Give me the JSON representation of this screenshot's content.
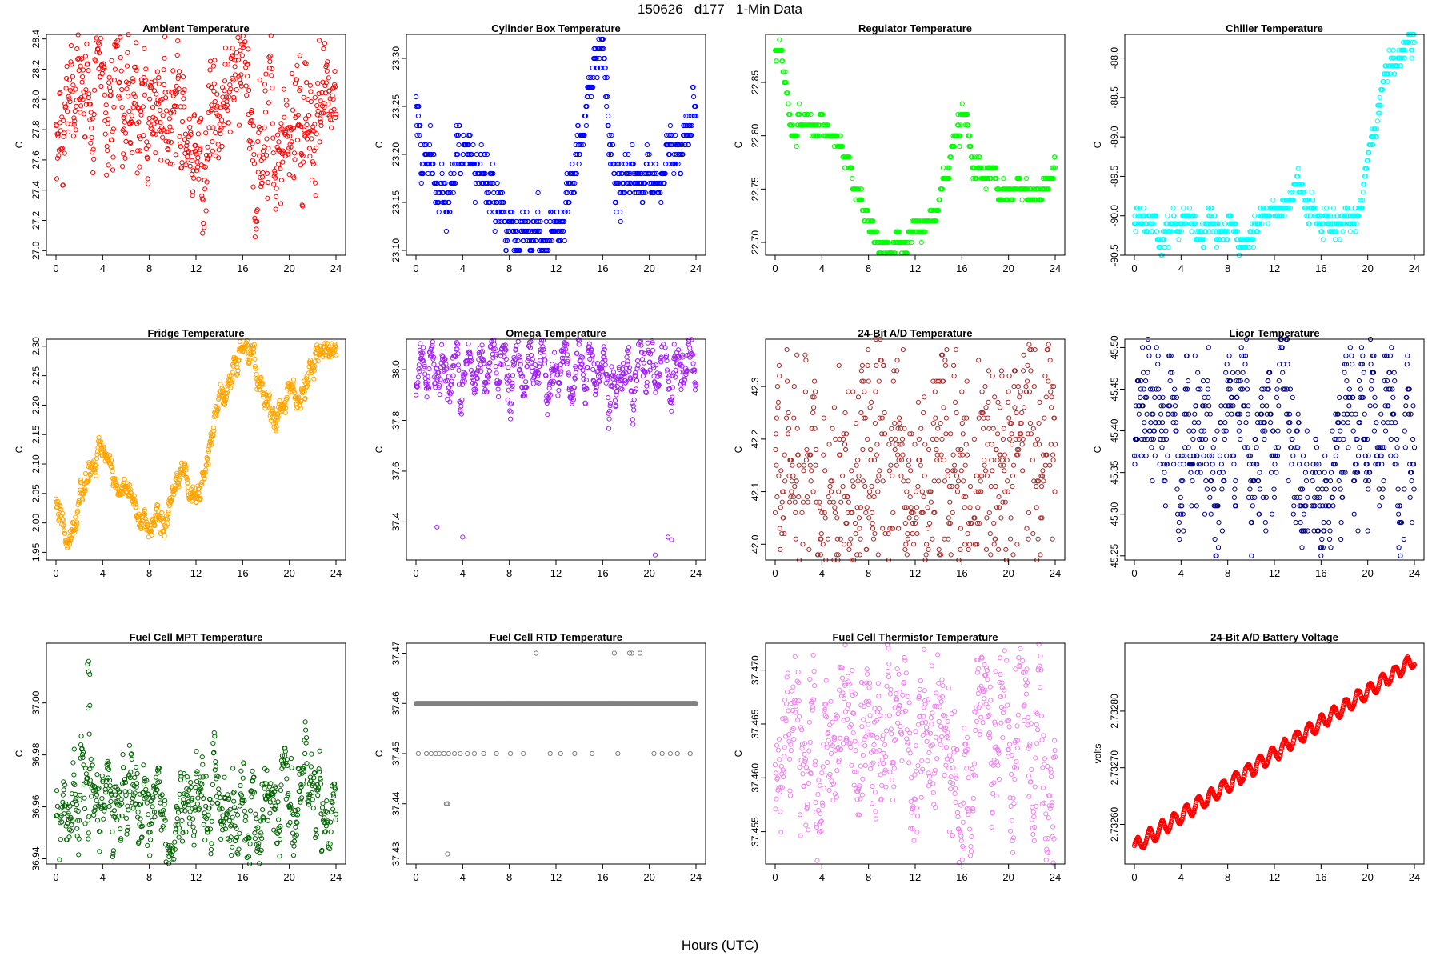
{
  "title": "150626   d177   1-Min Data",
  "x_label": "Hours (UTC)",
  "chart_data": [
    {
      "type": "scatter",
      "title": "Ambient Temperature",
      "xlabel": "",
      "ylabel": "C",
      "color": "#ff0000",
      "xlim": [
        0,
        24
      ],
      "xticks": [
        "0",
        "4",
        "8",
        "12",
        "16",
        "20",
        "24"
      ],
      "ylim": [
        26.97,
        28.43
      ],
      "yticks": [
        "27.0",
        "27.2",
        "27.4",
        "27.6",
        "27.8",
        "28.0",
        "28.2",
        "28.4"
      ],
      "ytick_values": [
        27.0,
        27.2,
        27.4,
        27.6,
        27.8,
        28.0,
        28.2,
        28.4
      ],
      "series": [
        {
          "name": "Ambient Temperature",
          "x": [
            0,
            1,
            2,
            3,
            4,
            5,
            6,
            7,
            8,
            9,
            10,
            11,
            12,
            12.5,
            13,
            14,
            15,
            16,
            16.5,
            17,
            18,
            19,
            20,
            21,
            22,
            23,
            24
          ],
          "y": [
            27.78,
            27.85,
            27.95,
            28.0,
            28.05,
            28.0,
            27.95,
            27.9,
            27.95,
            27.85,
            28.05,
            28.0,
            27.65,
            27.35,
            27.9,
            28.0,
            28.15,
            28.2,
            28.2,
            27.75,
            27.7,
            27.7,
            27.75,
            27.8,
            27.8,
            27.8,
            27.85
          ],
          "spread": 0.13,
          "noise": 0.11
        }
      ]
    },
    {
      "type": "scatter",
      "title": "Cylinder Box Temperature",
      "xlabel": "",
      "ylabel": "C",
      "color": "#0000ff",
      "xlim": [
        0,
        24
      ],
      "xticks": [
        "0",
        "4",
        "8",
        "12",
        "16",
        "20",
        "24"
      ],
      "ylim": [
        23.095,
        23.325
      ],
      "yticks": [
        "23.10",
        "23.15",
        "23.20",
        "23.25",
        "23.30"
      ],
      "ytick_values": [
        23.1,
        23.15,
        23.2,
        23.25,
        23.3
      ],
      "series": [
        {
          "name": "Cylinder Box Temperature",
          "x": [
            0,
            0.5,
            1.5,
            3,
            4,
            5,
            6,
            7,
            8,
            9,
            10,
            11,
            12,
            13,
            14,
            15,
            16,
            16.5,
            17,
            18,
            19,
            20,
            21,
            22,
            23,
            24
          ],
          "y": [
            23.25,
            23.22,
            23.17,
            23.18,
            23.22,
            23.2,
            23.18,
            23.15,
            23.12,
            23.11,
            23.12,
            23.11,
            23.13,
            23.15,
            23.2,
            23.27,
            23.32,
            23.24,
            23.17,
            23.165,
            23.17,
            23.18,
            23.18,
            23.19,
            23.21,
            23.25
          ],
          "spread": 0.01,
          "noise": 0.005,
          "quant": 0.01
        }
      ]
    },
    {
      "type": "scatter",
      "title": "Regulator Temperature",
      "xlabel": "",
      "ylabel": "C",
      "color": "#00ff00",
      "xlim": [
        0,
        24
      ],
      "xticks": [
        "0",
        "4",
        "8",
        "12",
        "16",
        "20",
        "24"
      ],
      "ylim": [
        22.688,
        22.895
      ],
      "yticks": [
        "22.70",
        "22.75",
        "22.80",
        "22.85"
      ],
      "ytick_values": [
        22.7,
        22.75,
        22.8,
        22.85
      ],
      "series": [
        {
          "name": "Regulator Temperature",
          "x": [
            0,
            0.5,
            1,
            1.5,
            2,
            3,
            4,
            5,
            6,
            7,
            8,
            9,
            10,
            11,
            12,
            13,
            14,
            15,
            16,
            16.5,
            17,
            18,
            19,
            20,
            21,
            22,
            23,
            24
          ],
          "y": [
            22.89,
            22.87,
            22.84,
            22.81,
            22.81,
            22.81,
            22.81,
            22.8,
            22.78,
            22.74,
            22.72,
            22.7,
            22.7,
            22.7,
            22.71,
            22.71,
            22.74,
            22.78,
            22.82,
            22.81,
            22.77,
            22.76,
            22.76,
            22.75,
            22.75,
            22.74,
            22.75,
            22.77
          ],
          "spread": 0.004,
          "noise": 0.002,
          "quant": 0.01
        }
      ]
    },
    {
      "type": "scatter",
      "title": "Chiller Temperature",
      "xlabel": "",
      "ylabel": "C",
      "color": "#00ffff",
      "xlim": [
        0,
        24
      ],
      "xticks": [
        "0",
        "4",
        "8",
        "12",
        "16",
        "20",
        "24"
      ],
      "ylim": [
        -90.5,
        -87.7
      ],
      "yticks": [
        "-90.5",
        "-90.0",
        "-89.5",
        "-89.0",
        "-88.5",
        "-88.0"
      ],
      "ytick_values": [
        -90.5,
        -90.0,
        -89.5,
        -89.0,
        -88.5,
        -88.0
      ],
      "series": [
        {
          "name": "Chiller Temperature",
          "x": [
            0,
            1,
            2,
            3,
            4,
            5,
            6,
            7,
            8,
            9,
            10,
            11,
            12,
            13,
            14,
            14.5,
            15,
            16,
            17,
            18,
            19,
            19.5,
            20,
            21,
            22,
            23,
            24
          ],
          "y": [
            -90.0,
            -90.15,
            -90.2,
            -90.2,
            -90.1,
            -90.1,
            -90.2,
            -90.2,
            -90.2,
            -90.4,
            -90.2,
            -89.9,
            -89.9,
            -89.9,
            -89.6,
            -89.7,
            -90.0,
            -90.1,
            -90.0,
            -90.0,
            -90.0,
            -89.8,
            -89.3,
            -88.5,
            -88.1,
            -87.9,
            -87.8
          ],
          "spread": 0.06,
          "noise": 0.03,
          "quant": 0.1
        }
      ]
    },
    {
      "type": "scatter",
      "title": "Fridge Temperature",
      "xlabel": "",
      "ylabel": "C",
      "color": "#ffa500",
      "xlim": [
        0,
        24
      ],
      "xticks": [
        "0",
        "4",
        "8",
        "12",
        "16",
        "20",
        "24"
      ],
      "ylim": [
        1.937,
        2.312
      ],
      "yticks": [
        "1.95",
        "2.00",
        "2.05",
        "2.10",
        "2.15",
        "2.20",
        "2.25",
        "2.30"
      ],
      "ytick_values": [
        1.95,
        2.0,
        2.05,
        2.1,
        2.15,
        2.2,
        2.25,
        2.3
      ],
      "series": [
        {
          "name": "Fridge Temperature",
          "x": [
            0,
            0.5,
            1,
            1.5,
            2,
            3,
            4,
            5,
            6,
            7,
            8,
            9,
            10,
            11,
            12,
            13,
            14,
            15,
            16,
            17,
            18,
            19,
            20,
            21,
            22,
            23,
            24
          ],
          "y": [
            2.03,
            2.0,
            1.95,
            1.98,
            2.03,
            2.1,
            2.12,
            2.07,
            2.06,
            2.0,
            2.0,
            2.0,
            2.05,
            2.1,
            2.04,
            2.1,
            2.22,
            2.25,
            2.29,
            2.28,
            2.2,
            2.19,
            2.23,
            2.21,
            2.26,
            2.3,
            2.29
          ],
          "spread": 0.007,
          "noise": 0.004
        }
      ]
    },
    {
      "type": "scatter",
      "title": "Omega Temperature",
      "xlabel": "",
      "ylabel": "C",
      "color": "#a020f0",
      "xlim": [
        0,
        24
      ],
      "xticks": [
        "0",
        "4",
        "8",
        "12",
        "16",
        "20",
        "24"
      ],
      "ylim": [
        37.25,
        38.12
      ],
      "yticks": [
        "37.4",
        "37.6",
        "37.8",
        "38.0"
      ],
      "ytick_values": [
        37.4,
        37.6,
        37.8,
        38.0
      ],
      "series": [
        {
          "name": "Omega Temperature",
          "x": [
            0,
            0.5,
            1,
            2,
            4,
            6,
            8,
            10,
            12,
            14,
            16,
            18,
            20,
            22,
            24
          ],
          "y": [
            37.88,
            37.98,
            38.0,
            38.0,
            38.0,
            38.0,
            38.0,
            38.0,
            38.0,
            38.0,
            38.0,
            37.99,
            38.0,
            38.0,
            38.0
          ],
          "spread": 0.03,
          "noise": 0.015,
          "wave": 0.07,
          "waveperiod": 1.05
        }
      ],
      "outliers": {
        "x": [
          1.8,
          4.0,
          20.5,
          21.6,
          21.9
        ],
        "y": [
          37.38,
          37.34,
          37.27,
          37.34,
          37.33
        ]
      }
    },
    {
      "type": "scatter",
      "title": "24-Bit A/D Temperature",
      "xlabel": "",
      "ylabel": "C",
      "color": "#a52a2a",
      "xlim": [
        0,
        24
      ],
      "xticks": [
        "0",
        "4",
        "8",
        "12",
        "16",
        "20",
        "24"
      ],
      "ylim": [
        41.97,
        42.39
      ],
      "yticks": [
        "42.0",
        "42.1",
        "42.2",
        "42.3"
      ],
      "ytick_values": [
        42.0,
        42.1,
        42.2,
        42.3
      ],
      "series": [
        {
          "name": "24-Bit A/D Temperature",
          "x": [
            0,
            4,
            8,
            12,
            16,
            20,
            24
          ],
          "y": [
            42.1,
            42.12,
            42.12,
            42.13,
            42.15,
            42.16,
            42.16
          ],
          "spread": 0.09,
          "noise": 0.06,
          "quant": 0.01
        }
      ]
    },
    {
      "type": "scatter",
      "title": "Licor Temperature",
      "xlabel": "",
      "ylabel": "C",
      "color": "#000080",
      "xlim": [
        0,
        24
      ],
      "xticks": [
        "0",
        "4",
        "8",
        "12",
        "16",
        "20",
        "24"
      ],
      "ylim": [
        45.245,
        45.51
      ],
      "yticks": [
        "45.25",
        "45.30",
        "45.35",
        "45.40",
        "45.45",
        "45.50"
      ],
      "ytick_values": [
        45.25,
        45.3,
        45.35,
        45.4,
        45.45,
        45.5
      ],
      "series": [
        {
          "name": "Licor Temperature",
          "x": [
            0,
            1,
            2,
            3,
            4,
            5,
            6,
            7,
            8,
            9,
            10,
            11,
            12,
            13,
            14,
            15,
            16,
            17,
            18,
            19,
            20,
            21,
            22,
            23,
            24
          ],
          "y": [
            45.36,
            45.43,
            45.4,
            45.38,
            45.37,
            45.38,
            45.41,
            45.39,
            45.42,
            45.41,
            45.4,
            45.38,
            45.37,
            45.38,
            45.36,
            45.3,
            45.29,
            45.4,
            45.42,
            45.41,
            45.41,
            45.39,
            45.38,
            45.36,
            45.35
          ],
          "spread": 0.035,
          "noise": 0.02,
          "quant": 0.01
        }
      ]
    },
    {
      "type": "scatter",
      "title": "Fuel Cell MPT Temperature",
      "xlabel": "",
      "ylabel": "C",
      "color": "#006400",
      "xlim": [
        0,
        24
      ],
      "xticks": [
        "0",
        "4",
        "8",
        "12",
        "16",
        "20",
        "24"
      ],
      "ylim": [
        36.938,
        37.023
      ],
      "yticks": [
        "36.94",
        "36.96",
        "36.98",
        "37.00"
      ],
      "ytick_values": [
        36.94,
        36.96,
        36.98,
        37.0
      ],
      "series": [
        {
          "name": "Fuel Cell MPT Temperature",
          "x": [
            0,
            2,
            4,
            5,
            6,
            8,
            10,
            12,
            13,
            14,
            15,
            16,
            17,
            18,
            20,
            21,
            22,
            23,
            24
          ],
          "y": [
            36.957,
            36.96,
            36.958,
            36.965,
            36.96,
            36.96,
            36.957,
            36.96,
            36.965,
            36.962,
            36.955,
            36.958,
            36.962,
            36.958,
            36.958,
            36.964,
            36.958,
            36.956,
            36.952
          ],
          "spread": 0.006,
          "noise": 0.003
        }
      ],
      "outliers": {
        "x": [
          2.7,
          2.8,
          2.8,
          2.9,
          2.75,
          2.85,
          2.9
        ],
        "y": [
          37.015,
          37.012,
          37.016,
          36.999,
          36.998,
          36.988,
          37.011
        ]
      }
    },
    {
      "type": "scatter",
      "title": "Fuel Cell RTD Temperature",
      "xlabel": "",
      "ylabel": "C",
      "color": "#808080",
      "xlim": [
        0,
        24
      ],
      "xticks": [
        "0",
        "4",
        "8",
        "12",
        "16",
        "20",
        "24"
      ],
      "ylim": [
        37.428,
        37.472
      ],
      "yticks": [
        "37.43",
        "37.44",
        "37.45",
        "37.46",
        "37.47"
      ],
      "ytick_values": [
        37.43,
        37.44,
        37.45,
        37.46,
        37.47
      ],
      "series": [
        {
          "name": "Fuel Cell RTD Temperature",
          "x": [
            0,
            24
          ],
          "y": [
            37.46,
            37.46
          ],
          "spread": 0.0,
          "noise": 0.0
        }
      ],
      "outliers": {
        "x": [
          0.2,
          0.9,
          1.3,
          1.7,
          2.0,
          2.4,
          2.8,
          3.3,
          3.8,
          4.4,
          5.0,
          5.8,
          6.9,
          8.1,
          9.2,
          11.5,
          12.4,
          13.6,
          15.1,
          17.3,
          20.4,
          21.1,
          21.8,
          22.4,
          23.5,
          2.6,
          2.7,
          2.75,
          2.7,
          10.3,
          17.0,
          18.3,
          18.5,
          19.2
        ],
        "y": [
          37.45,
          37.45,
          37.45,
          37.45,
          37.45,
          37.45,
          37.45,
          37.45,
          37.45,
          37.45,
          37.45,
          37.45,
          37.45,
          37.45,
          37.45,
          37.45,
          37.45,
          37.45,
          37.45,
          37.45,
          37.45,
          37.45,
          37.45,
          37.45,
          37.45,
          37.44,
          37.44,
          37.44,
          37.43,
          37.47,
          37.47,
          37.47,
          37.47,
          37.47
        ]
      }
    },
    {
      "type": "scatter",
      "title": "Fuel Cell Thermistor Temperature",
      "xlabel": "",
      "ylabel": "C",
      "color": "#ee82ee",
      "xlim": [
        0,
        24
      ],
      "xticks": [
        "0",
        "4",
        "8",
        "12",
        "16",
        "20",
        "24"
      ],
      "ylim": [
        37.452,
        37.4725
      ],
      "yticks": [
        "37.455",
        "37.460",
        "37.465",
        "37.470"
      ],
      "ytick_values": [
        37.455,
        37.46,
        37.465,
        37.47
      ],
      "series": [
        {
          "name": "Fuel Cell Thermistor Temperature",
          "x": [
            0,
            1,
            2,
            3,
            4,
            5,
            6,
            7,
            8,
            9,
            10,
            11,
            12,
            13,
            14,
            15,
            16,
            17,
            18,
            19,
            20,
            21,
            22,
            23,
            24
          ],
          "y": [
            37.463,
            37.466,
            37.462,
            37.459,
            37.463,
            37.462,
            37.465,
            37.464,
            37.466,
            37.466,
            37.465,
            37.464,
            37.464,
            37.463,
            37.464,
            37.462,
            37.459,
            37.461,
            37.466,
            37.464,
            37.466,
            37.462,
            37.461,
            37.461,
            37.462
          ],
          "spread": 0.0025,
          "noise": 0.0015
        }
      ]
    },
    {
      "type": "scatter",
      "title": "24-Bit A/D Battery Voltage",
      "xlabel": "",
      "ylabel": "volts",
      "color": "#ff0000",
      "xlim": [
        0,
        24
      ],
      "xticks": [
        "0",
        "4",
        "8",
        "12",
        "16",
        "20",
        "24"
      ],
      "ylim": [
        2.73253,
        2.73292
      ],
      "yticks": [
        "2.73260",
        "2.73270",
        "2.73280"
      ],
      "ytick_values": [
        2.7326,
        2.7327,
        2.7328
      ],
      "series": [
        {
          "name": "24-Bit A/D Battery Voltage",
          "x": [
            0,
            24
          ],
          "y": [
            2.73256,
            2.73289
          ],
          "spread": 7e-07,
          "noise": 4e-07,
          "wave": 1.2e-05,
          "waveperiod": 1.05
        }
      ]
    }
  ]
}
